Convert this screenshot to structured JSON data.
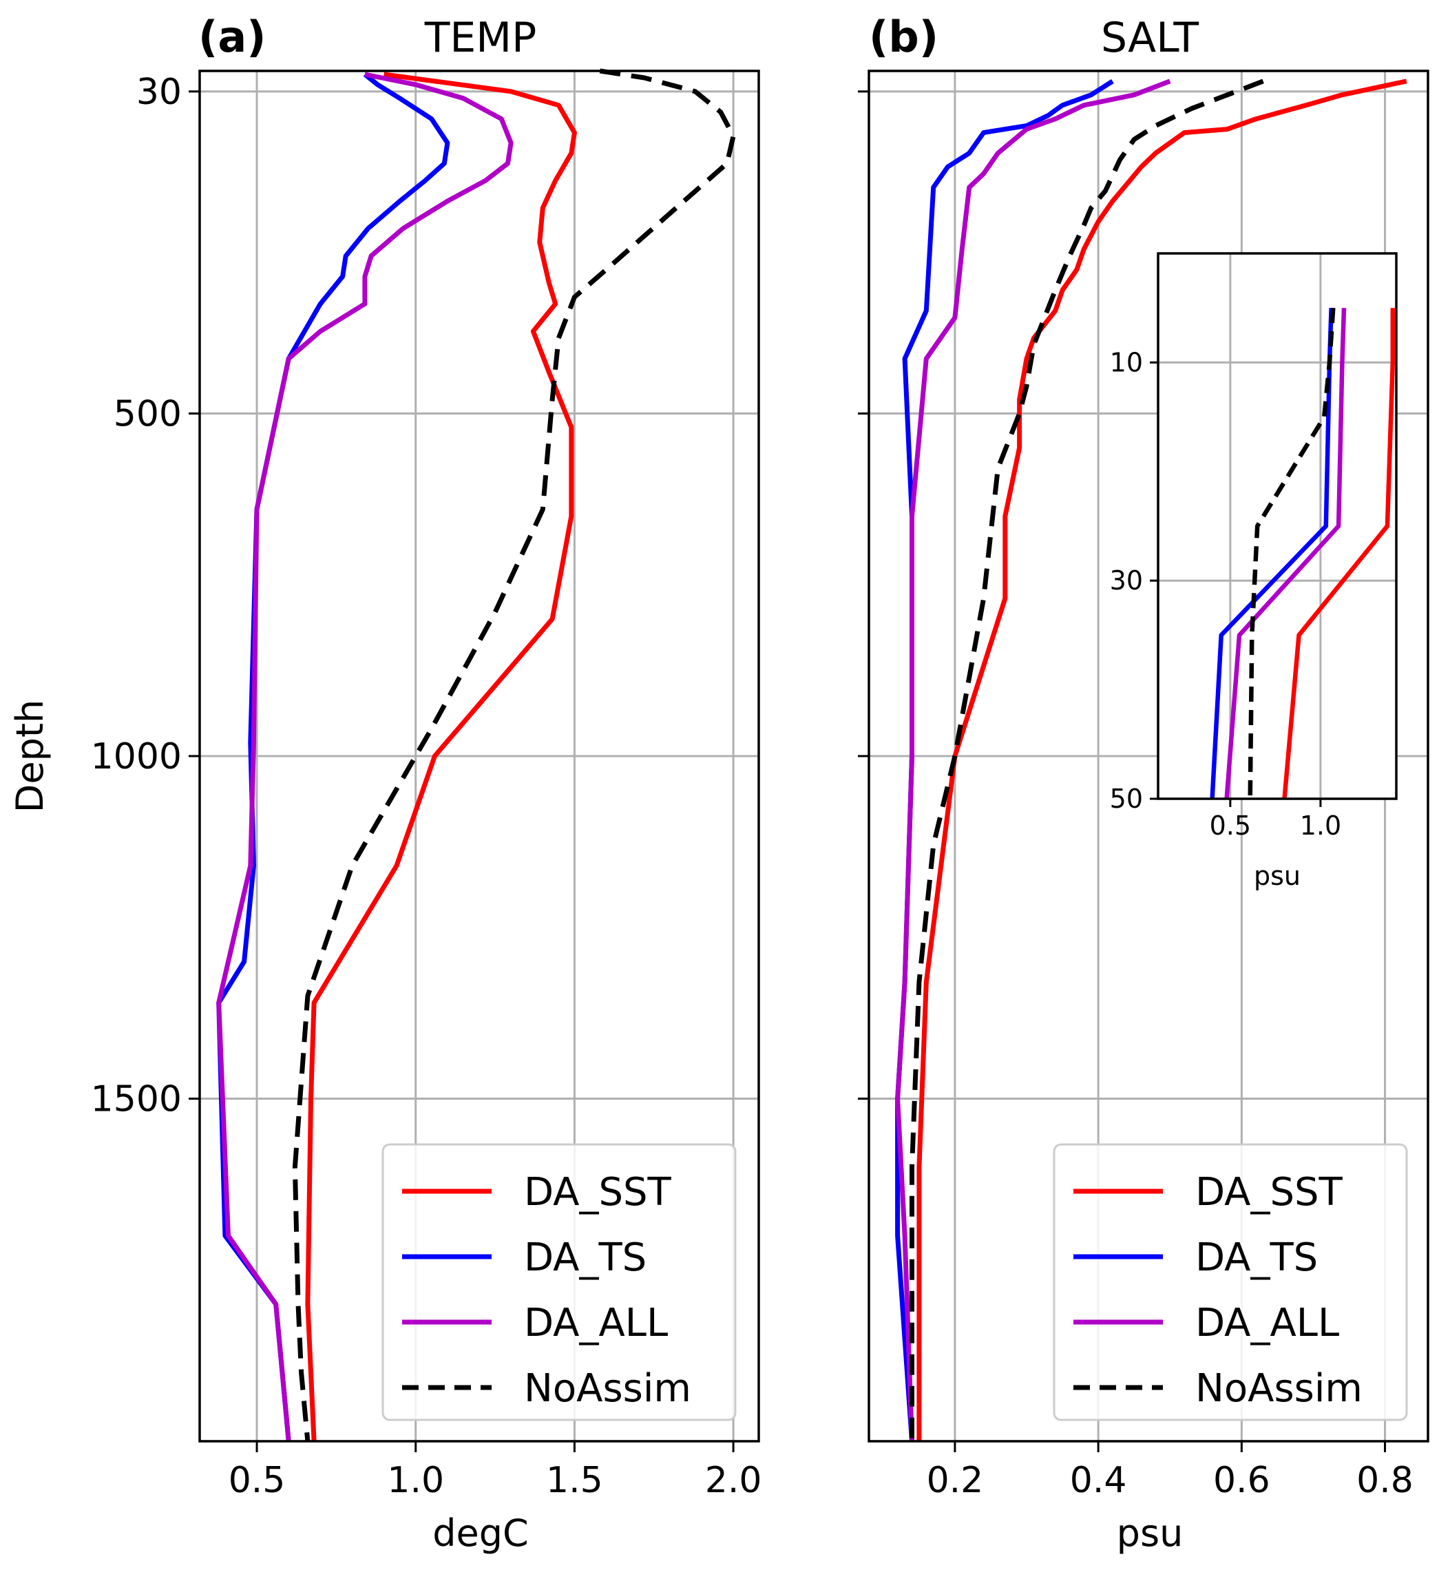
{
  "chart_data": [
    {
      "type": "line",
      "panel_label": "(a)",
      "title": "TEMP",
      "xlabel": "degC",
      "ylabel": "Depth",
      "xlim": [
        0.32,
        2.08
      ],
      "ylim": [
        2000,
        0
      ],
      "xticks": [
        0.5,
        1.0,
        1.5,
        2.0
      ],
      "xtick_labels": [
        "0.5",
        "1.0",
        "1.5",
        "2.0"
      ],
      "yticks": [
        30,
        500,
        1000,
        1500
      ],
      "ytick_labels": [
        "30",
        "500",
        "1000",
        "1500"
      ],
      "grid": true,
      "legend_position": "lower-right",
      "series": [
        {
          "name": "DA_SST",
          "color": "#ff0000",
          "dash": "solid",
          "x": [
            0.9,
            1.3,
            1.45,
            1.5,
            1.49,
            1.44,
            1.4,
            1.39,
            1.42,
            1.44,
            1.37,
            1.42,
            1.49,
            1.49,
            1.43,
            1.06,
            0.94,
            0.68,
            0.67,
            0.66,
            0.67,
            0.68
          ],
          "y": [
            5,
            30,
            50,
            90,
            120,
            160,
            200,
            250,
            310,
            340,
            380,
            440,
            520,
            650,
            800,
            1000,
            1160,
            1360,
            1500,
            1800,
            1900,
            2000
          ]
        },
        {
          "name": "DA_TS",
          "color": "#0000ff",
          "dash": "solid",
          "x": [
            0.84,
            0.88,
            0.95,
            1.05,
            1.1,
            1.09,
            1.03,
            0.95,
            0.85,
            0.78,
            0.77,
            0.7,
            0.6,
            0.5,
            0.48,
            0.49,
            0.46,
            0.38,
            0.4,
            0.56,
            0.58,
            0.6
          ],
          "y": [
            5,
            20,
            40,
            70,
            105,
            135,
            160,
            190,
            230,
            270,
            300,
            340,
            420,
            640,
            980,
            1160,
            1300,
            1360,
            1700,
            1800,
            1900,
            2000
          ]
        },
        {
          "name": "DA_ALL",
          "color": "#b000c8",
          "dash": "solid",
          "x": [
            0.84,
            1.0,
            1.15,
            1.27,
            1.3,
            1.29,
            1.22,
            1.1,
            0.96,
            0.86,
            0.84,
            0.84,
            0.7,
            0.6,
            0.5,
            0.49,
            0.48,
            0.38,
            0.41,
            0.56,
            0.58,
            0.6
          ],
          "y": [
            5,
            20,
            40,
            70,
            105,
            135,
            160,
            190,
            230,
            270,
            300,
            340,
            380,
            420,
            640,
            980,
            1160,
            1360,
            1700,
            1800,
            1900,
            2000
          ]
        },
        {
          "name": "NoAssim",
          "color": "#000000",
          "dash": "dashed",
          "x": [
            1.58,
            1.72,
            1.88,
            1.96,
            2.0,
            1.98,
            1.82,
            1.6,
            1.5,
            1.45,
            1.43,
            1.4,
            1.25,
            1.05,
            0.8,
            0.66,
            0.62,
            0.63,
            0.64,
            0.66
          ],
          "y": [
            0,
            10,
            30,
            60,
            95,
            135,
            200,
            290,
            330,
            390,
            480,
            640,
            790,
            960,
            1160,
            1350,
            1600,
            1800,
            1900,
            2000
          ]
        }
      ]
    },
    {
      "type": "line",
      "panel_label": "(b)",
      "title": "SALT",
      "xlabel": "psu",
      "ylabel": "",
      "xlim": [
        0.08,
        0.86
      ],
      "ylim": [
        2000,
        0
      ],
      "xticks": [
        0.2,
        0.4,
        0.6,
        0.8
      ],
      "xtick_labels": [
        "0.2",
        "0.4",
        "0.6",
        "0.8"
      ],
      "yticks": [
        30,
        500,
        1000,
        1500
      ],
      "grid": true,
      "legend_position": "lower-right",
      "series": [
        {
          "name": "DA_SST",
          "color": "#ff0000",
          "dash": "solid",
          "x": [
            0.83,
            0.74,
            0.69,
            0.62,
            0.58,
            0.52,
            0.48,
            0.46,
            0.44,
            0.42,
            0.4,
            0.38,
            0.37,
            0.35,
            0.34,
            0.31,
            0.3,
            0.29,
            0.29,
            0.27,
            0.27,
            0.2,
            0.16,
            0.15,
            0.15
          ],
          "y": [
            15,
            35,
            50,
            70,
            85,
            90,
            120,
            140,
            165,
            190,
            220,
            260,
            290,
            320,
            350,
            390,
            420,
            480,
            550,
            650,
            770,
            1000,
            1330,
            1600,
            2000
          ]
        },
        {
          "name": "DA_TS",
          "color": "#0000ff",
          "dash": "solid",
          "x": [
            0.42,
            0.39,
            0.35,
            0.33,
            0.3,
            0.24,
            0.22,
            0.19,
            0.17,
            0.16,
            0.13,
            0.14,
            0.14,
            0.13,
            0.12,
            0.12,
            0.14
          ],
          "y": [
            15,
            35,
            50,
            65,
            80,
            90,
            120,
            140,
            170,
            350,
            420,
            650,
            1000,
            1330,
            1500,
            1700,
            2000
          ]
        },
        {
          "name": "DA_ALL",
          "color": "#b000c8",
          "dash": "solid",
          "x": [
            0.5,
            0.45,
            0.38,
            0.34,
            0.3,
            0.26,
            0.24,
            0.22,
            0.21,
            0.2,
            0.16,
            0.14,
            0.14,
            0.13,
            0.12,
            0.13,
            0.14
          ],
          "y": [
            15,
            35,
            50,
            70,
            85,
            120,
            150,
            170,
            260,
            360,
            420,
            650,
            1000,
            1330,
            1500,
            1700,
            2000
          ]
        },
        {
          "name": "NoAssim",
          "color": "#000000",
          "dash": "dashed",
          "x": [
            0.63,
            0.58,
            0.53,
            0.48,
            0.45,
            0.43,
            0.41,
            0.39,
            0.38,
            0.36,
            0.34,
            0.31,
            0.3,
            0.29,
            0.26,
            0.24,
            0.2,
            0.17,
            0.15,
            0.14,
            0.14,
            0.14
          ],
          "y": [
            15,
            35,
            55,
            80,
            100,
            130,
            175,
            200,
            225,
            270,
            320,
            400,
            460,
            500,
            580,
            770,
            1000,
            1130,
            1330,
            1600,
            1800,
            2000
          ]
        }
      ]
    },
    {
      "type": "line",
      "panel_label": "inset",
      "xlabel": "psu",
      "xlim": [
        0.1,
        1.42
      ],
      "ylim": [
        50,
        0
      ],
      "xticks": [
        0.5,
        1.0
      ],
      "xtick_labels": [
        "0.5",
        "1.0"
      ],
      "yticks": [
        10,
        30,
        50
      ],
      "ytick_labels": [
        "10",
        "30",
        "50"
      ],
      "grid": true,
      "series": [
        {
          "name": "DA_SST",
          "color": "#ff0000",
          "dash": "solid",
          "x": [
            1.4,
            1.4,
            1.37,
            0.88,
            0.8
          ],
          "y": [
            5,
            10,
            25,
            35,
            50
          ]
        },
        {
          "name": "DA_TS",
          "color": "#0000ff",
          "dash": "solid",
          "x": [
            1.06,
            1.05,
            1.03,
            0.45,
            0.4
          ],
          "y": [
            5,
            10,
            25,
            35,
            50
          ]
        },
        {
          "name": "DA_ALL",
          "color": "#b000c8",
          "dash": "solid",
          "x": [
            1.13,
            1.12,
            1.1,
            0.55,
            0.48
          ],
          "y": [
            5,
            10,
            25,
            35,
            50
          ]
        },
        {
          "name": "NoAssim",
          "color": "#000000",
          "dash": "dashed",
          "x": [
            1.07,
            1.05,
            1.02,
            0.65,
            0.62,
            0.61
          ],
          "y": [
            5,
            10,
            15,
            25,
            35,
            50
          ]
        }
      ]
    }
  ],
  "legend": {
    "items": [
      {
        "name": "DA_SST",
        "color": "#ff0000",
        "dash": "solid"
      },
      {
        "name": "DA_TS",
        "color": "#0000ff",
        "dash": "solid"
      },
      {
        "name": "DA_ALL",
        "color": "#b000c8",
        "dash": "solid"
      },
      {
        "name": "NoAssim",
        "color": "#000000",
        "dash": "dashed"
      }
    ]
  }
}
